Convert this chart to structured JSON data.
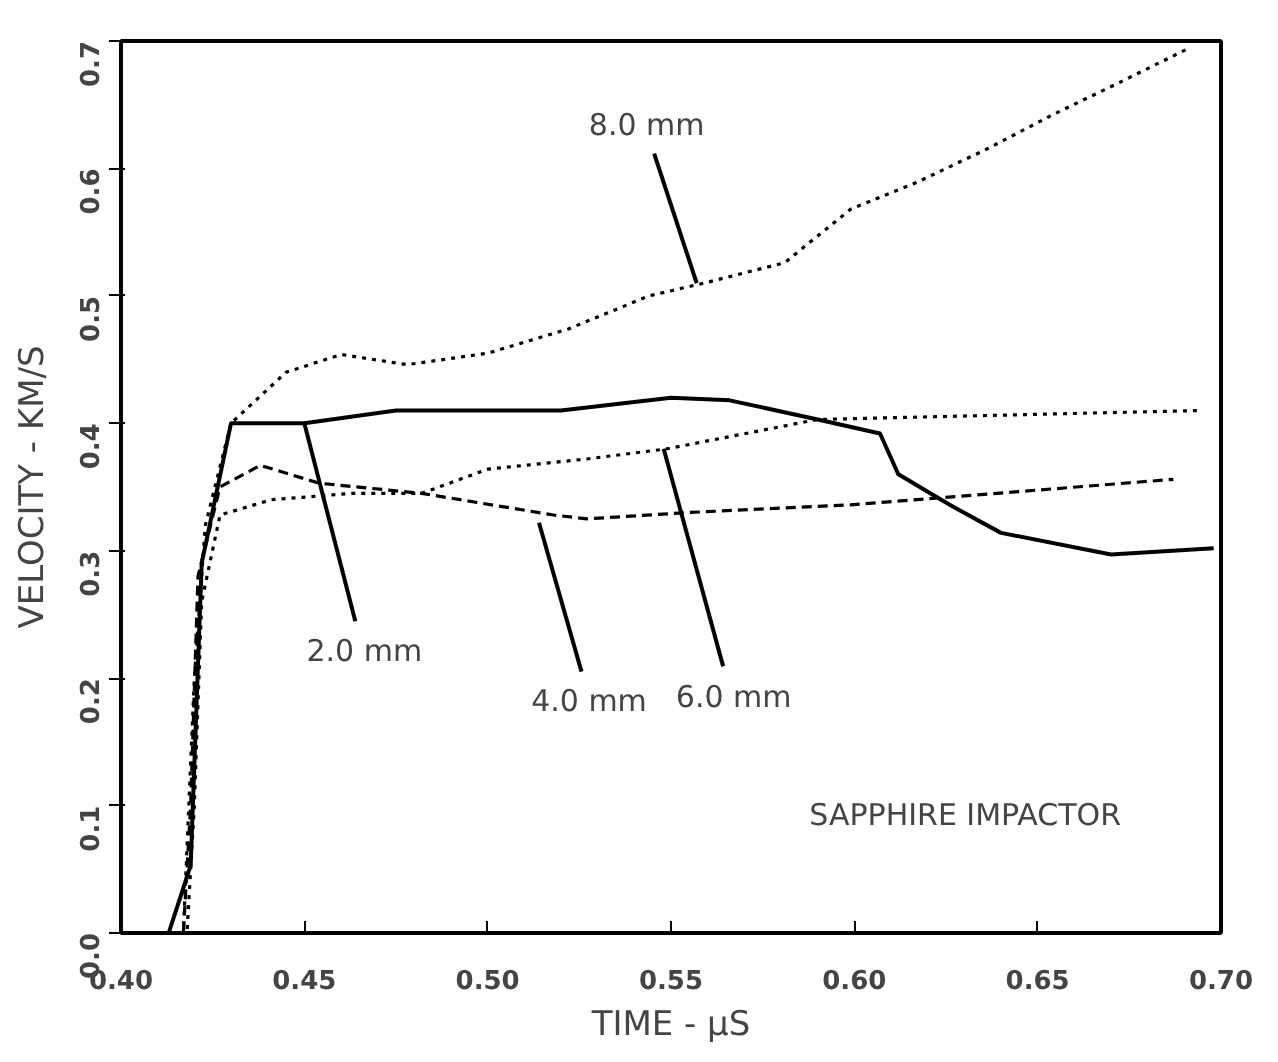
{
  "chart_data": {
    "type": "line",
    "xlabel": "TIME - μS",
    "ylabel": "VELOCITY - KM/S",
    "xlim": [
      0.4,
      0.7
    ],
    "ylim": [
      0.0,
      0.7
    ],
    "xticks": [
      {
        "value": 0.4,
        "label": "0.40"
      },
      {
        "value": 0.45,
        "label": "0.45"
      },
      {
        "value": 0.5,
        "label": "0.50"
      },
      {
        "value": 0.55,
        "label": "0.55"
      },
      {
        "value": 0.6,
        "label": "0.60"
      },
      {
        "value": 0.65,
        "label": "0.65"
      },
      {
        "value": 0.7,
        "label": "0.70"
      }
    ],
    "yticks": [
      {
        "value": 0.0,
        "label": "0.0"
      },
      {
        "value": 0.1,
        "label": "0.1"
      },
      {
        "value": 0.2,
        "label": "0.2"
      },
      {
        "value": 0.3,
        "label": "0.3"
      },
      {
        "value": 0.4,
        "label": "0.4"
      },
      {
        "value": 0.5,
        "label": "0.5"
      },
      {
        "value": 0.6,
        "label": "0.6"
      },
      {
        "value": 0.7,
        "label": "0.7"
      }
    ],
    "grid": false,
    "marker": "none",
    "series": [
      {
        "color": "#000000",
        "line_style": "solid",
        "x": [
          0.4,
          0.413,
          0.419,
          0.422,
          0.43,
          0.45,
          0.475,
          0.52,
          0.55,
          0.566,
          0.59,
          0.607,
          0.612,
          0.626,
          0.64,
          0.67,
          0.698
        ],
        "values": [
          0.0,
          0.0,
          0.053,
          0.29,
          0.4,
          0.4,
          0.41,
          0.41,
          0.42,
          0.418,
          0.403,
          0.392,
          0.36,
          0.336,
          0.314,
          0.297,
          0.302
        ]
      },
      {
        "color": "#000000",
        "line_style": "dashed",
        "x": [
          0.4,
          0.417,
          0.419,
          0.421,
          0.427,
          0.438,
          0.454,
          0.482,
          0.518,
          0.527,
          0.555,
          0.599,
          0.687
        ],
        "values": [
          0.0,
          0.0,
          0.1,
          0.28,
          0.35,
          0.367,
          0.353,
          0.345,
          0.328,
          0.325,
          0.33,
          0.336,
          0.356
        ]
      },
      {
        "color": "#000000",
        "line_style": "dotted",
        "x": [
          0.4,
          0.418,
          0.42,
          0.422,
          0.427,
          0.441,
          0.463,
          0.482,
          0.5,
          0.527,
          0.549,
          0.59,
          0.694
        ],
        "values": [
          0.0,
          0.0,
          0.1,
          0.26,
          0.328,
          0.34,
          0.345,
          0.345,
          0.364,
          0.372,
          0.38,
          0.403,
          0.41
        ]
      },
      {
        "color": "#000000",
        "line_style": "dotted",
        "x": [
          0.4,
          0.417,
          0.42,
          0.423,
          0.43,
          0.445,
          0.46,
          0.478,
          0.5,
          0.522,
          0.544,
          0.559,
          0.581,
          0.599,
          0.617,
          0.636,
          0.654,
          0.672,
          0.691
        ],
        "values": [
          0.0,
          0.0,
          0.2,
          0.32,
          0.4,
          0.44,
          0.454,
          0.446,
          0.455,
          0.474,
          0.5,
          0.51,
          0.526,
          0.568,
          0.589,
          0.615,
          0.642,
          0.667,
          0.694
        ]
      }
    ],
    "annotations": [
      {
        "text": "2.0 mm",
        "x": 0.45,
        "y": 0.4
      },
      {
        "text": "4.0 mm",
        "x": 0.514,
        "y": 0.322
      },
      {
        "text": "6.0 mm",
        "x": 0.548,
        "y": 0.38
      },
      {
        "text": "8.0 mm",
        "x": 0.557,
        "y": 0.51
      },
      "SAPPHIRE IMPACTOR"
    ]
  }
}
